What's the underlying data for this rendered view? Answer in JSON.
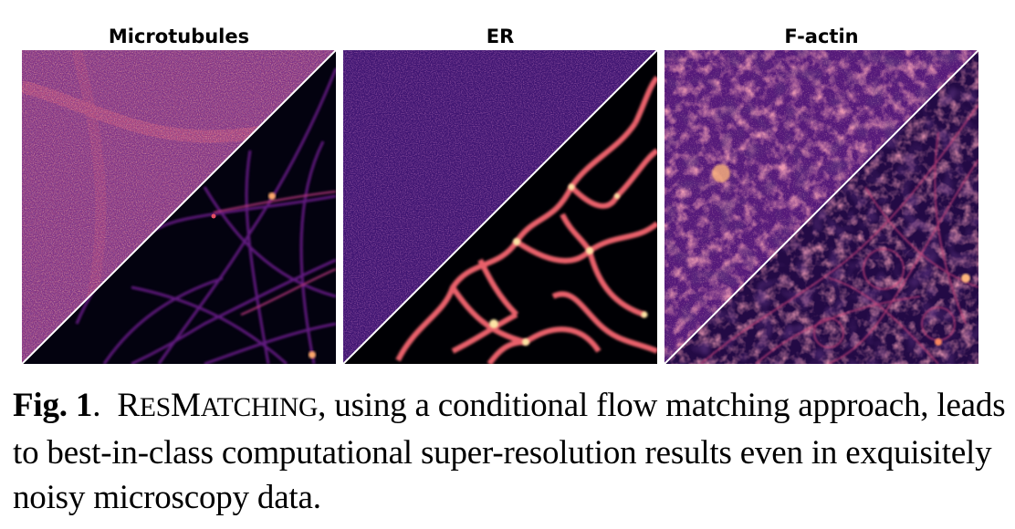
{
  "figure": {
    "panels": [
      {
        "title": "Microtubules",
        "noisy_base": "#7b2f7f",
        "clean_base": "#02010f",
        "structure_color": "#8b3aa0",
        "highlight": "#fca86a"
      },
      {
        "title": "ER",
        "noisy_base": "#3d1570",
        "clean_base": "#000004",
        "structure_color": "#f58a63",
        "highlight": "#fde5a5"
      },
      {
        "title": "F-actin",
        "noisy_base": "#4b1675",
        "clean_base": "#100724",
        "structure_color": "#a4327e",
        "highlight": "#feb57c"
      }
    ],
    "colormap": [
      "#000004",
      "#1c1044",
      "#4f127b",
      "#812581",
      "#b5367a",
      "#e55064",
      "#fb8761",
      "#fec287",
      "#fcfdbf"
    ]
  },
  "caption": {
    "label": "Fig. 1",
    "sep": ".",
    "method_first": "R",
    "method_rest_a": "ES",
    "method_mid": "M",
    "method_rest_b": "ATCHING",
    "text": ", using a conditional flow matching approach, leads to best-in-class computational super-resolution results even in exquisitely noisy microscopy data."
  }
}
